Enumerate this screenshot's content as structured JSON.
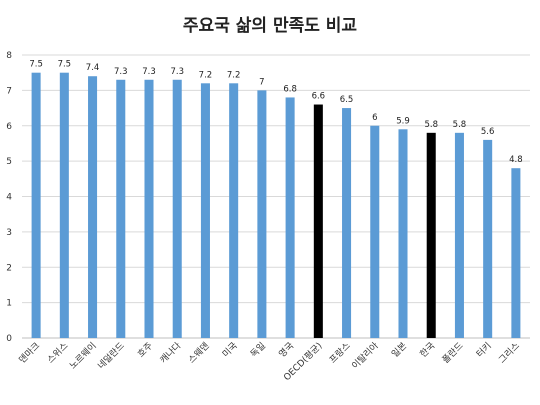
{
  "chart_data": {
    "type": "bar",
    "title": "주요국 삶의 만족도 비교",
    "xlabel": "",
    "ylabel": "",
    "ylim": [
      0,
      8
    ],
    "yticks": [
      "0",
      "1",
      "2",
      "3",
      "4",
      "5",
      "6",
      "7",
      "8"
    ],
    "grid": true,
    "legend": "none",
    "categories": [
      "덴마크",
      "스위스",
      "노르웨이",
      "네덜란드",
      "호주",
      "캐나다",
      "스웨덴",
      "미국",
      "독일",
      "영국",
      "OECD(평균)",
      "프랑스",
      "이탈리아",
      "일본",
      "한국",
      "폴란드",
      "터키",
      "그리스"
    ],
    "values": [
      7.5,
      7.5,
      7.4,
      7.3,
      7.3,
      7.3,
      7.2,
      7.2,
      7,
      6.8,
      6.6,
      6.5,
      6,
      5.9,
      5.8,
      5.8,
      5.6,
      4.8
    ],
    "value_labels": [
      "7.5",
      "7.5",
      "7.4",
      "7.3",
      "7.3",
      "7.3",
      "7.2",
      "7.2",
      "7",
      "6.8",
      "6.6",
      "6.5",
      "6",
      "5.9",
      "5.8",
      "5.8",
      "5.6",
      "4.8"
    ],
    "highlighted": [
      "OECD(평균)",
      "한국"
    ],
    "colors": {
      "bar": "#5b9bd5",
      "highlight": "#000000",
      "grid": "#d9d9d9",
      "axis": "#bfbfbf"
    }
  }
}
